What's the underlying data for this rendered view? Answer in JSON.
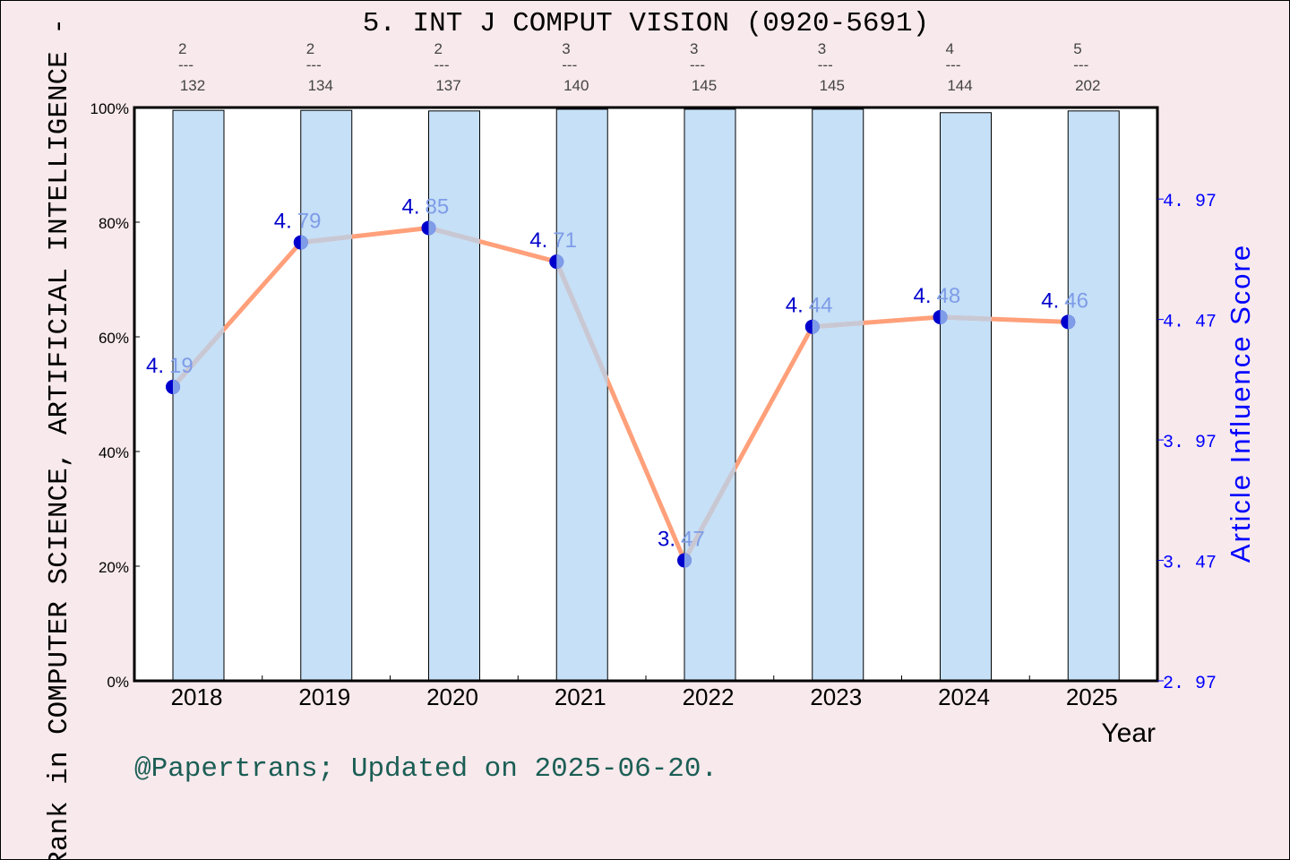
{
  "chart_data": {
    "type": "bar+line",
    "title": "5. INT J COMPUT VISION (0920-5691)",
    "xlabel": "Year",
    "ylabel_left": "Rank in COMPUTER SCIENCE, ARTIFICIAL INTELLIGENCE -",
    "ylabel_right": "Article Influence Score",
    "categories": [
      "2018",
      "2019",
      "2020",
      "2021",
      "2022",
      "2023",
      "2024",
      "2025"
    ],
    "rank_labels": [
      {
        "rank": "2",
        "total": "132"
      },
      {
        "rank": "2",
        "total": "134"
      },
      {
        "rank": "2",
        "total": "137"
      },
      {
        "rank": "3",
        "total": "140"
      },
      {
        "rank": "3",
        "total": "145"
      },
      {
        "rank": "3",
        "total": "145"
      },
      {
        "rank": "4",
        "total": "144"
      },
      {
        "rank": "5",
        "total": "202"
      }
    ],
    "bar_values_percent": [
      99.5,
      99.5,
      99.4,
      99.7,
      99.7,
      99.7,
      99.1,
      99.4
    ],
    "line_values": [
      4.19,
      4.79,
      4.85,
      4.71,
      3.47,
      4.44,
      4.48,
      4.46
    ],
    "point_labels": [
      [
        "4.",
        "19"
      ],
      [
        "4.",
        "79"
      ],
      [
        "4.",
        "85"
      ],
      [
        "4.",
        "71"
      ],
      [
        "3.",
        "47"
      ],
      [
        "4.",
        "44"
      ],
      [
        "4.",
        "48"
      ],
      [
        "4.",
        "46"
      ]
    ],
    "left_ticks": [
      "0%",
      "20%",
      "40%",
      "60%",
      "80%",
      "100%"
    ],
    "left_ylim": [
      0,
      100
    ],
    "right_ticks": [
      "2. 97",
      "3. 47",
      "3. 97",
      "4. 47",
      "4. 97"
    ],
    "right_tick_values": [
      2.97,
      3.47,
      3.97,
      4.47,
      4.97
    ],
    "right_ylim": [
      2.97,
      5.35
    ],
    "grid": false,
    "colors": {
      "background": "#f8e9ec",
      "plot_bg": "#ffffff",
      "bar": "#c5e0f7",
      "line": "#ffa07a",
      "line_over_bar": "#c8c8d4",
      "point_dark": "#0000cc",
      "point_light": "#7f9ce8",
      "right_axis": "#0000ff",
      "footer": "#1b5e55"
    }
  },
  "footer": "@Papertrans; Updated on 2025-06-20."
}
